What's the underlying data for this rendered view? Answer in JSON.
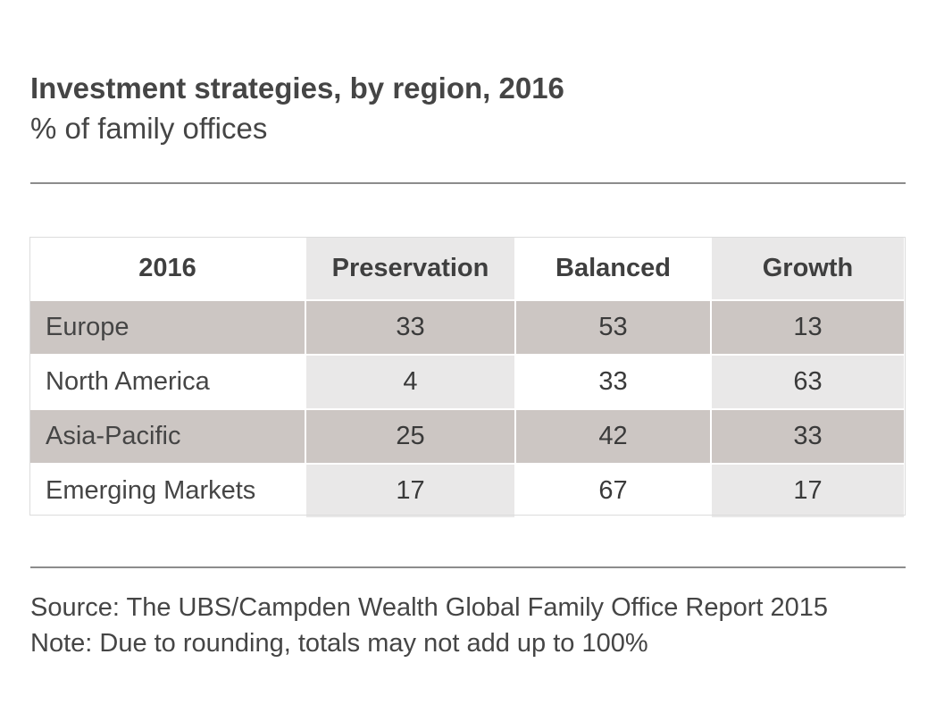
{
  "title": "Investment strategies, by region, 2016",
  "subtitle": "% of family offices",
  "chart_data": {
    "type": "table",
    "title": "Investment strategies, by region, 2016",
    "subtitle": "% of family offices",
    "columns": [
      "2016",
      "Preservation",
      "Balanced",
      "Growth"
    ],
    "rows": [
      {
        "region": "Europe",
        "values": [
          33,
          53,
          13
        ]
      },
      {
        "region": "North America",
        "values": [
          4,
          33,
          63
        ]
      },
      {
        "region": "Asia-Pacific",
        "values": [
          25,
          42,
          33
        ]
      },
      {
        "region": "Emerging Markets",
        "values": [
          17,
          67,
          17
        ]
      }
    ]
  },
  "footer": {
    "source": "Source: The UBS/Campden Wealth Global Family Office Report 2015",
    "note": "Note: Due to rounding, totals may not add up to 100%"
  },
  "colors": {
    "shaded_row": "#ccc6c3",
    "alt_column": "#e9e8e8",
    "text": "#454545",
    "rule": "#8c8c8c"
  }
}
